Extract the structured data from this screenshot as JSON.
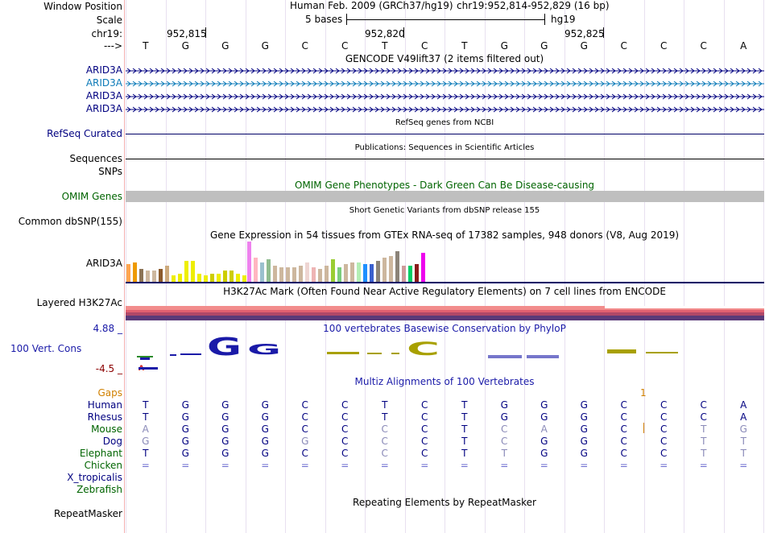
{
  "labels": {
    "window_position": "Window Position",
    "scale": "Scale",
    "chrom": "chr19:",
    "strand": "--->",
    "arid_1": "ARID3A",
    "arid_2": "ARID3A",
    "arid_3": "ARID3A",
    "arid_4": "ARID3A",
    "refseq": "RefSeq Curated",
    "sequences": "Sequences",
    "snps": "SNPs",
    "omim": "OMIM Genes",
    "dbsnp": "Common dbSNP(155)",
    "gtex_gene": "ARID3A",
    "h3k27ac": "Layered H3K27Ac",
    "cons_max": "4.88 _",
    "cons_label": "100 Vert. Cons",
    "cons_min": "-4.5 _",
    "gaps": "Gaps",
    "species": [
      "Human",
      "Rhesus",
      "Mouse",
      "Dog",
      "Elephant",
      "Chicken",
      "X_tropicalis",
      "Zebrafish"
    ],
    "repeatmasker": "RepeatMasker"
  },
  "header": {
    "assembly": "Human Feb. 2009 (GRCh37/hg19)",
    "position": "chr19:952,814-952,829 (16 bp)",
    "scale_text": "5 bases",
    "scale_db": "hg19",
    "ticks": [
      "952,815",
      "952,820",
      "952,825"
    ]
  },
  "sequence": [
    "T",
    "G",
    "G",
    "G",
    "C",
    "C",
    "T",
    "C",
    "T",
    "G",
    "G",
    "G",
    "C",
    "C",
    "C",
    "A"
  ],
  "titles": {
    "gencode": "GENCODE V49lift37 (2 items filtered out)",
    "refseq": "RefSeq genes from NCBI",
    "publications": "Publications: Sequences in Scientific Articles",
    "omim": "OMIM Gene Phenotypes - Dark Green Can Be Disease-causing",
    "dbsnp": "Short Genetic Variants from dbSNP release 155",
    "gtex": "Gene Expression in 54 tissues from GTEx RNA-seq of 17382 samples, 948 donors (V8, Aug 2019)",
    "h3k27ac": "H3K27Ac Mark (Often Found Near Active Regulatory Elements) on 7 cell lines from ENCODE",
    "phylop": "100 vertebrates Basewise Conservation by PhyloP",
    "multiz": "Multiz Alignments of 100 Vertebrates",
    "repeatmasker": "Repeating Elements by RepeatMasker"
  },
  "gaps_marker": "1",
  "alignments": [
    [
      "T",
      "G",
      "G",
      "G",
      "C",
      "C",
      "T",
      "C",
      "T",
      "G",
      "G",
      "G",
      "C",
      "C",
      "C",
      "A"
    ],
    [
      "T",
      "G",
      "G",
      "G",
      "C",
      "C",
      "T",
      "C",
      "T",
      "G",
      "G",
      "G",
      "C",
      "C",
      "C",
      "A"
    ],
    [
      "A",
      "G",
      "G",
      "G",
      "C",
      "C",
      "C",
      "C",
      "T",
      "C",
      "A",
      "G",
      "C",
      "C",
      "T",
      "G"
    ],
    [
      "G",
      "G",
      "G",
      "G",
      "G",
      "C",
      "C",
      "C",
      "T",
      "C",
      "G",
      "G",
      "C",
      "C",
      "T",
      "T"
    ],
    [
      "T",
      "G",
      "G",
      "G",
      "C",
      "C",
      "C",
      "C",
      "T",
      "T",
      "G",
      "G",
      "C",
      "C",
      "T",
      "T"
    ],
    [
      "=",
      "=",
      "=",
      "=",
      "=",
      "=",
      "=",
      "=",
      "=",
      "=",
      "=",
      "=",
      "=",
      "=",
      "=",
      "="
    ]
  ],
  "colors": {
    "label_blue": "#000080",
    "label_teal": "#0c7ab8",
    "omim_green": "#006400",
    "gaps_orange": "#d08000",
    "phylop_blue": "#1a1aa8",
    "phylop_olive": "#a8a000",
    "divider": "#f3b0b0"
  }
}
